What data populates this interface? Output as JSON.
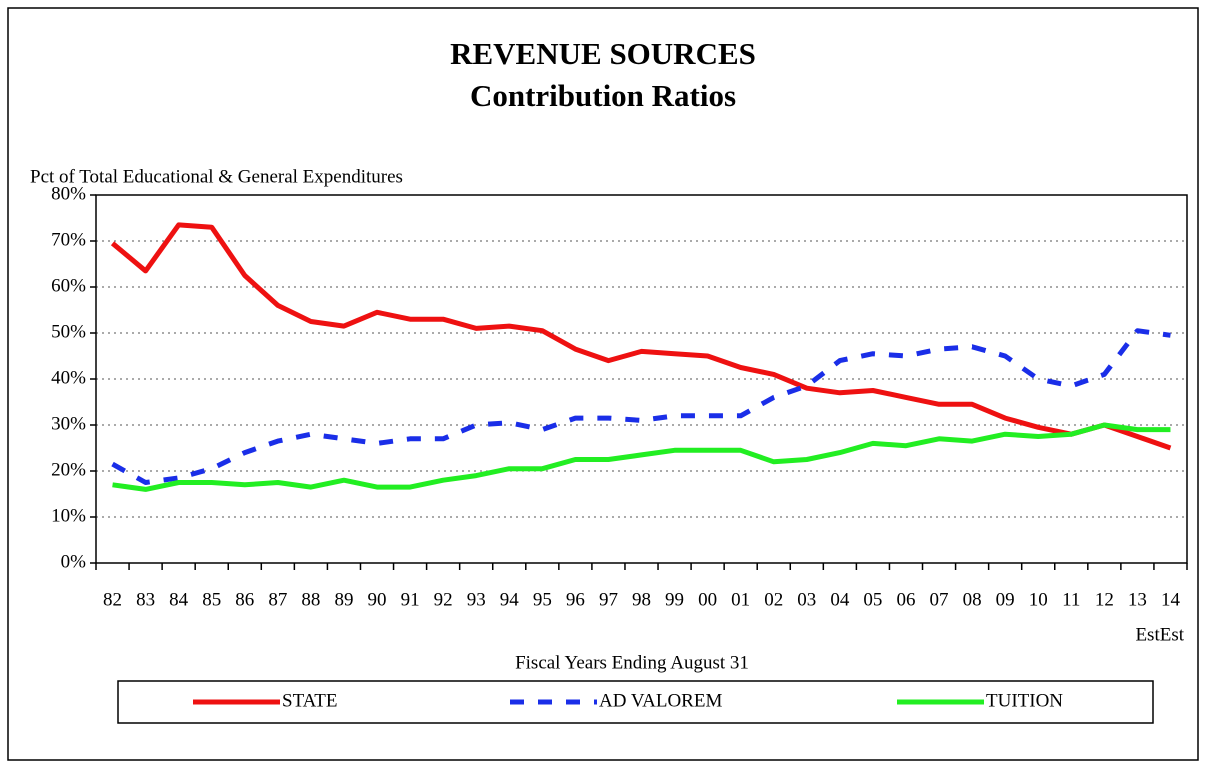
{
  "chart_data": {
    "type": "line",
    "title": "REVENUE SOURCES",
    "subtitle": "Contribution Ratios",
    "y_label": "Pct of Total Educational & General Expenditures",
    "x_label": "Fiscal Years Ending August 31",
    "x_note": "EstEst",
    "categories": [
      "82",
      "83",
      "84",
      "85",
      "86",
      "87",
      "88",
      "89",
      "90",
      "91",
      "92",
      "93",
      "94",
      "95",
      "96",
      "97",
      "98",
      "99",
      "00",
      "01",
      "02",
      "03",
      "04",
      "05",
      "06",
      "07",
      "08",
      "09",
      "10",
      "11",
      "12",
      "13",
      "14"
    ],
    "series": [
      {
        "name": "STATE",
        "color": "#ee1111",
        "dash": false,
        "values": [
          69.5,
          63.5,
          73.5,
          73,
          62.5,
          56,
          52.5,
          51.5,
          54.5,
          53,
          53,
          51,
          51.5,
          50.5,
          46.5,
          44,
          46,
          45.5,
          45,
          42.5,
          41,
          38,
          37,
          37.5,
          36,
          34.5,
          34.5,
          31.5,
          29.5,
          28,
          30,
          27.5,
          25
        ]
      },
      {
        "name": "AD VALOREM",
        "color": "#1a2ee8",
        "dash": true,
        "values": [
          21.5,
          17.5,
          18.5,
          20.5,
          24,
          26.5,
          28,
          27,
          26,
          27,
          27,
          30,
          30.5,
          29,
          31.5,
          31.5,
          31,
          32,
          32,
          32,
          36,
          38.5,
          44,
          45.5,
          45,
          46.5,
          47,
          45,
          40,
          38.5,
          41,
          50.5,
          49.5
        ]
      },
      {
        "name": "TUITION",
        "color": "#22ee22",
        "dash": false,
        "values": [
          17,
          16,
          17.5,
          17.5,
          17,
          17.5,
          16.5,
          18,
          16.5,
          16.5,
          18,
          19,
          20.5,
          20.5,
          22.5,
          22.5,
          23.5,
          24.5,
          24.5,
          24.5,
          22,
          22.5,
          24,
          26,
          25.5,
          27,
          26.5,
          28,
          27.5,
          28,
          30,
          29,
          29
        ]
      }
    ],
    "ylim": [
      0,
      80
    ],
    "yticks": [
      {
        "value": 0,
        "label": "0%"
      },
      {
        "value": 10,
        "label": "10%"
      },
      {
        "value": 20,
        "label": "20%"
      },
      {
        "value": 30,
        "label": "30%"
      },
      {
        "value": 40,
        "label": "40%"
      },
      {
        "value": 50,
        "label": "50%"
      },
      {
        "value": 60,
        "label": "60%"
      },
      {
        "value": 70,
        "label": "70%"
      },
      {
        "value": 80,
        "label": "80%"
      }
    ],
    "grid": true,
    "legend": "bottom"
  }
}
